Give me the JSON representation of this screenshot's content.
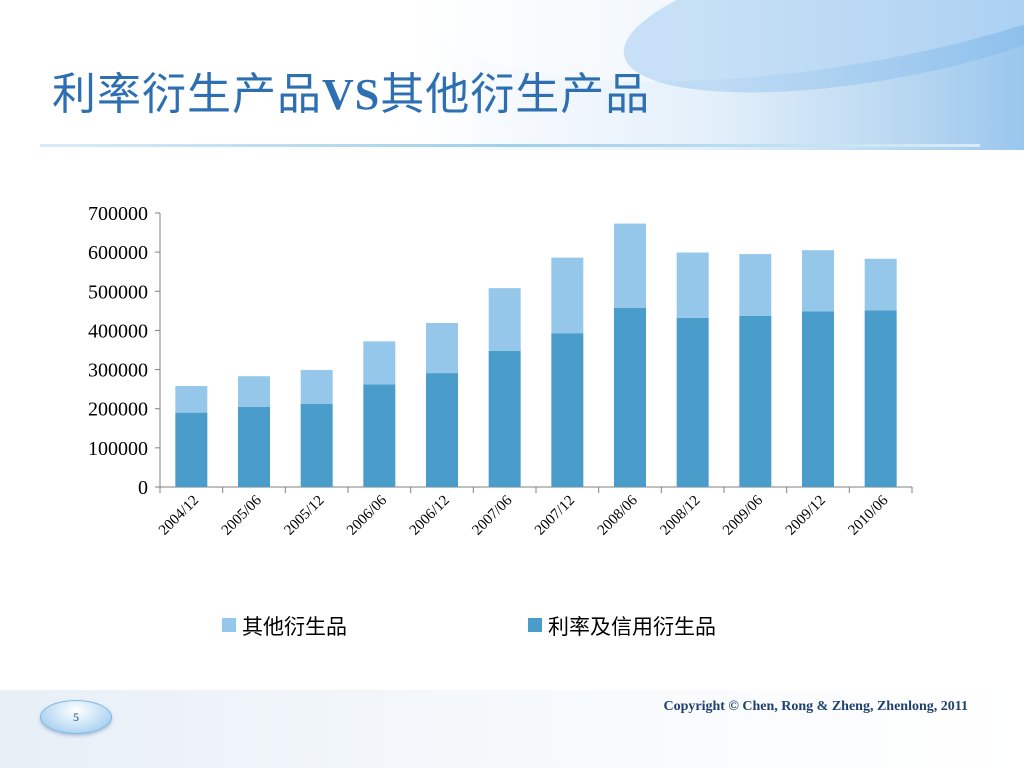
{
  "slide": {
    "title_part1": "利率衍生产品",
    "title_vs": "VS",
    "title_part2": "其他衍生产品",
    "page_number": "5",
    "copyright": "Copyright © Chen, Rong  & Zheng, Zhenlong, 2011"
  },
  "colors": {
    "title": "#2e6fb2",
    "other_derivatives": "#95c7ea",
    "interest_credit_derivatives": "#4a9ccb"
  },
  "chart_data": {
    "type": "bar",
    "stacked": true,
    "categories": [
      "2004/12",
      "2005/06",
      "2005/12",
      "2006/06",
      "2006/12",
      "2007/06",
      "2007/12",
      "2008/06",
      "2008/12",
      "2009/06",
      "2009/12",
      "2010/06"
    ],
    "series": [
      {
        "name": "利率及信用衍生品",
        "color": "#4a9ccb",
        "values": [
          190000,
          205000,
          212000,
          262000,
          291000,
          348000,
          393000,
          458000,
          432000,
          437000,
          449000,
          451000
        ]
      },
      {
        "name": "其他衍生品",
        "color": "#95c7ea",
        "values": [
          68000,
          78000,
          87000,
          110000,
          128000,
          160000,
          193000,
          215000,
          167000,
          158000,
          156000,
          132000
        ]
      }
    ],
    "ylim": [
      0,
      700000
    ],
    "yticks": [
      "0",
      "100000",
      "200000",
      "300000",
      "400000",
      "500000",
      "600000",
      "700000"
    ],
    "legend": [
      "其他衍生品",
      "利率及信用衍生品"
    ],
    "legend_position": "bottom",
    "grid": false
  }
}
